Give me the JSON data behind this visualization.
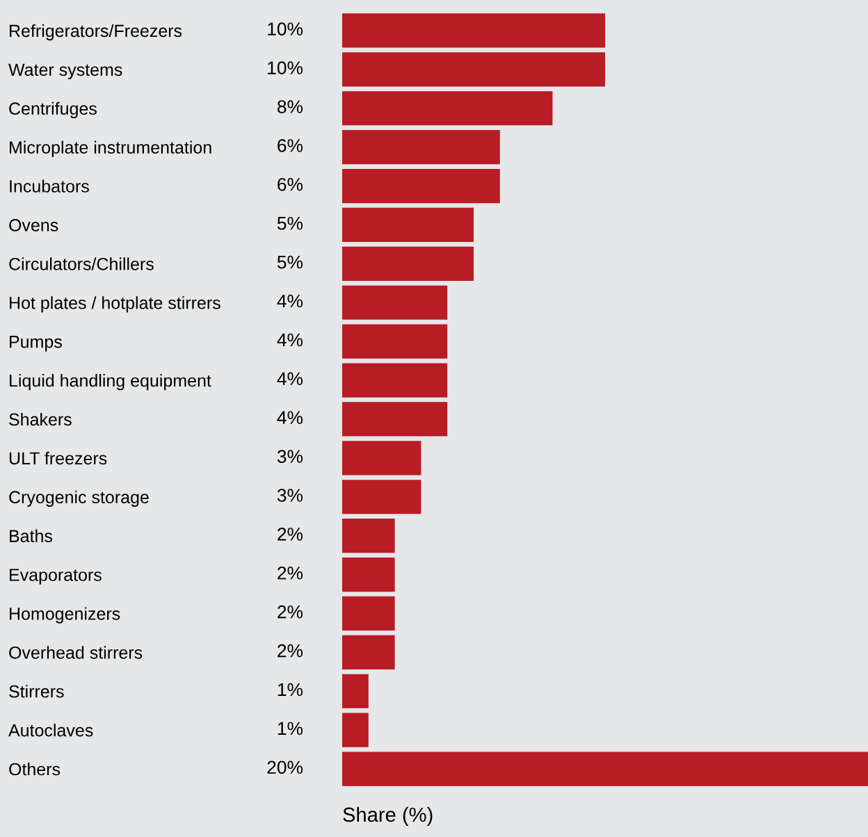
{
  "chart_data": {
    "type": "bar",
    "orientation": "horizontal",
    "xlabel": "Share (%)",
    "categories": [
      "Refrigerators/Freezers",
      "Water systems",
      "Centrifuges",
      "Microplate instrumentation",
      "Incubators",
      "Ovens",
      "Circulators/Chillers",
      "Hot plates / hotplate stirrers",
      "Pumps",
      "Liquid handling equipment",
      "Shakers",
      "ULT freezers",
      "Cryogenic storage",
      "Baths",
      "Evaporators",
      "Homogenizers",
      "Overhead stirrers",
      "Stirrers",
      "Autoclaves",
      "Others"
    ],
    "values": [
      10,
      10,
      8,
      6,
      6,
      5,
      5,
      4,
      4,
      4,
      4,
      3,
      3,
      2,
      2,
      2,
      2,
      1,
      1,
      20
    ],
    "value_labels": [
      "10%",
      "10%",
      "8%",
      "6%",
      "6%",
      "5%",
      "5%",
      "4%",
      "4%",
      "4%",
      "4%",
      "3%",
      "3%",
      "2%",
      "2%",
      "2%",
      "2%",
      "1%",
      "1%",
      "20%"
    ],
    "color": "#b81c25",
    "xlim": [
      0,
      20
    ],
    "tick_labels": "y",
    "grid": false,
    "legend": false
  }
}
